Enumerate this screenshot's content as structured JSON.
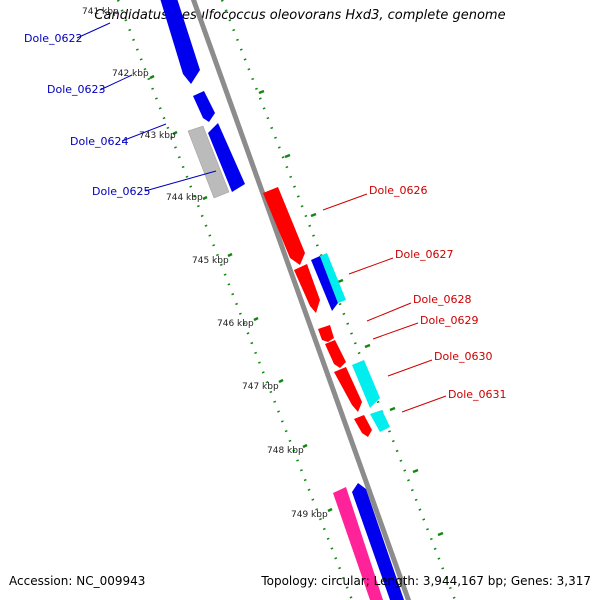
{
  "header": {
    "title": "Candidatus Desulfococcus oleovorans Hxd3, complete genome"
  },
  "footer": {
    "accession": "Accession: NC_009943",
    "topology": "Topology: circular;",
    "length": "Length: 3,944,167 bp;",
    "genes": "Genes: 3,317"
  },
  "colors": {
    "backbone": "#8c8c8c",
    "tick_dots": "#118811",
    "forward_label": "#0000bb",
    "reverse_label": "#cc0000",
    "blue_feature": "#0000ee",
    "gray_feature": "#bbbbbb",
    "red_feature": "#ff0000",
    "cyan_feature": "#00eeee",
    "pink_feature": "#ff2299"
  },
  "kbp_ticks": [
    "741 kbp",
    "742 kbp",
    "743 kbp",
    "744 kbp",
    "745 kbp",
    "746 kbp",
    "747 kbp",
    "748 kbp",
    "749 kbp"
  ],
  "gene_labels_forward": [
    "Dole_0622",
    "Dole_0623",
    "Dole_0624",
    "Dole_0625"
  ],
  "gene_labels_reverse": [
    "Dole_0626",
    "Dole_0627",
    "Dole_0628",
    "Dole_0629",
    "Dole_0630",
    "Dole_0631"
  ]
}
